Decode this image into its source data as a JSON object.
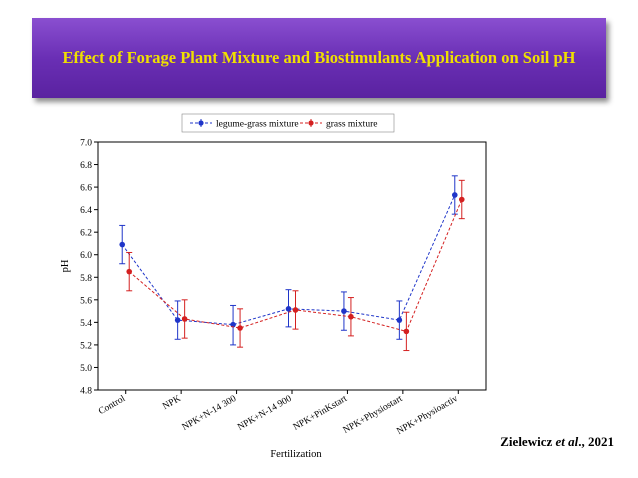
{
  "header": {
    "title": "Effect of Forage Plant Mixture and Biostimulants Application on Soil pH"
  },
  "citation": {
    "prefix": "Zielewicz ",
    "etal": "et al",
    "suffix": "., 2021"
  },
  "chart_data": {
    "type": "line",
    "xlabel": "Fertilization",
    "ylabel": "pH",
    "ylim": [
      4.8,
      7.0
    ],
    "y_ticks": [
      "4.8",
      "5.0",
      "5.2",
      "5.4",
      "5.6",
      "5.8",
      "6.0",
      "6.2",
      "6.4",
      "6.6",
      "6.8",
      "7.0"
    ],
    "categories": [
      "Control",
      "NPK",
      "NPK+N-14 300",
      "NPK+N-14 900",
      "NPK+PinKstart",
      "NPK+Physiostart",
      "NPK+Physioactiv"
    ],
    "legend_position": "top-center",
    "grid": false,
    "series": [
      {
        "name": "legume-grass mixture",
        "color": "#1f35c9",
        "values": [
          6.09,
          5.42,
          5.38,
          5.52,
          5.5,
          5.42,
          6.53
        ],
        "lower": [
          5.92,
          5.25,
          5.2,
          5.36,
          5.33,
          5.25,
          6.36
        ],
        "upper": [
          6.26,
          5.59,
          5.55,
          5.69,
          5.67,
          5.59,
          6.7
        ]
      },
      {
        "name": "grass mixture",
        "color": "#d42020",
        "values": [
          5.85,
          5.43,
          5.35,
          5.51,
          5.45,
          5.32,
          6.49
        ],
        "lower": [
          5.68,
          5.26,
          5.18,
          5.34,
          5.28,
          5.15,
          6.32
        ],
        "upper": [
          6.02,
          5.6,
          5.52,
          5.68,
          5.62,
          5.49,
          6.66
        ]
      }
    ]
  }
}
